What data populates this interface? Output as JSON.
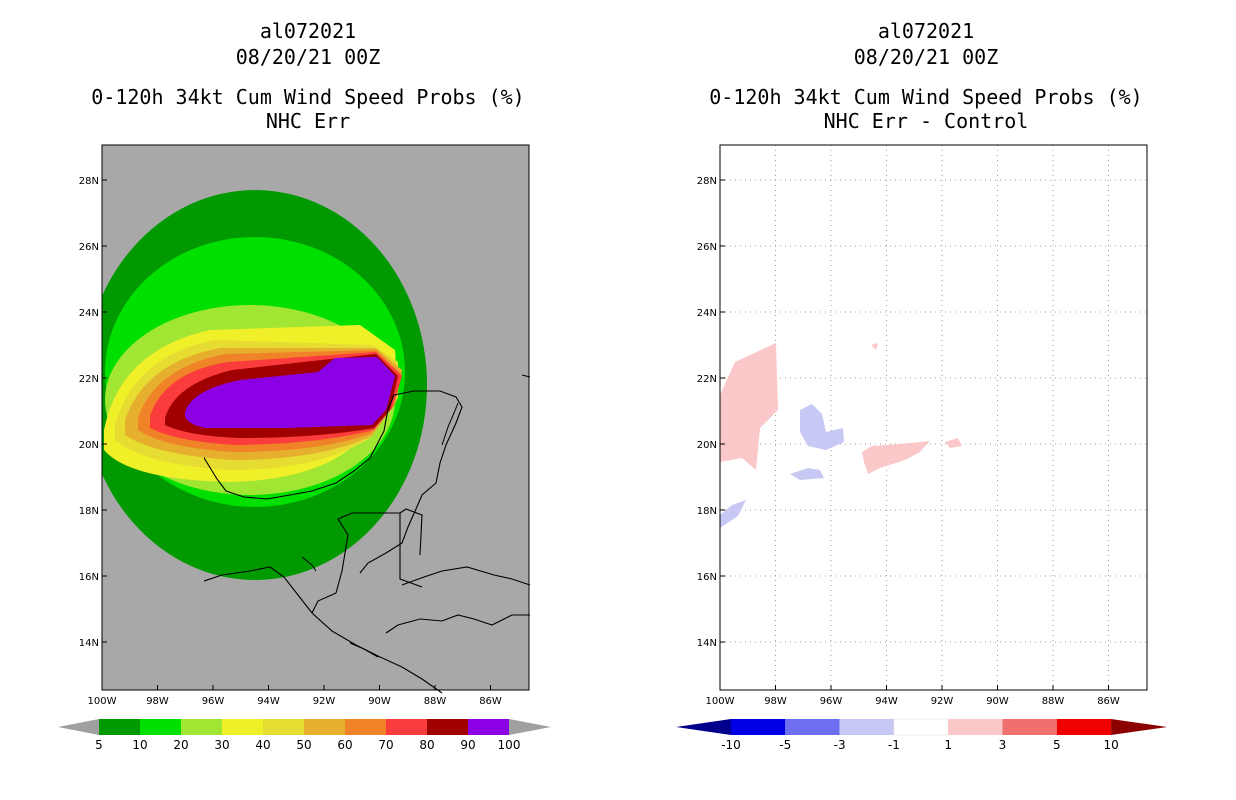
{
  "panels": [
    {
      "storm_id": "al072021",
      "datetime": "08/20/21 00Z",
      "product": "0-120h 34kt Cum Wind Speed Probs (%)",
      "subtitle": "NHC Err",
      "colorbar": {
        "labels": [
          "5",
          "10",
          "20",
          "30",
          "40",
          "50",
          "60",
          "70",
          "80",
          "90",
          "100"
        ],
        "colors": [
          "#009a00",
          "#00e000",
          "#a0e632",
          "#f0f028",
          "#e6dc32",
          "#e6af2d",
          "#f08228",
          "#fa3c3c",
          "#a00000",
          "#8c00e6"
        ],
        "end_color": "#a0a0a0"
      }
    },
    {
      "storm_id": "al072021",
      "datetime": "08/20/21 00Z",
      "product": "0-120h 34kt Cum Wind Speed Probs (%)",
      "subtitle": "NHC Err - Control",
      "colorbar": {
        "labels": [
          "-10",
          "-5",
          "-3",
          "-1",
          "1",
          "3",
          "5",
          "10"
        ],
        "colors": [
          "#0000e6",
          "#6e6ef0",
          "#c8c8f5",
          "#ffffff",
          "#fac8c8",
          "#f07070",
          "#f00000"
        ],
        "low_end_color": "#00008c",
        "high_end_color": "#8c0000"
      }
    }
  ],
  "axes": {
    "lon_labels": [
      "100W",
      "98W",
      "96W",
      "94W",
      "92W",
      "90W",
      "88W",
      "86W"
    ],
    "lat_labels": [
      "28N",
      "26N",
      "24N",
      "22N",
      "20N",
      "18N",
      "16N",
      "14N"
    ]
  },
  "colors": {
    "background": "#ffffff",
    "map_fill_left": "#a8a8a8",
    "grid": "#888888",
    "coast": "#000000"
  }
}
